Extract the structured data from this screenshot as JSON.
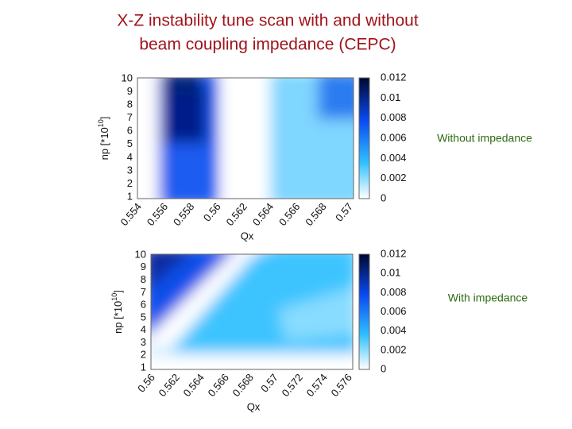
{
  "header": {
    "title_lines": [
      "X-Z instability tune scan with and without",
      "beam coupling impedance (CEPC)"
    ]
  },
  "panels": [
    {
      "caption": "Without impedance",
      "ylabel": {
        "base": "np [*10",
        "sup": "10",
        "end": "]"
      },
      "xlabel": "Qx",
      "yticks": [
        "1",
        "2",
        "3",
        "4",
        "5",
        "6",
        "7",
        "8",
        "9",
        "10"
      ],
      "xticks": [
        "0.554",
        "0.556",
        "0.558",
        "0.56",
        "0.562",
        "0.564",
        "0.566",
        "0.568",
        "0.57"
      ],
      "cbticks": [
        "0",
        "0.002",
        "0.004",
        "0.006",
        "0.008",
        "0.01",
        "0.012"
      ]
    },
    {
      "caption": "With impedance",
      "ylabel": {
        "base": "np [*10",
        "sup": "10",
        "end": "]"
      },
      "xlabel": "Qx",
      "yticks": [
        "1",
        "2",
        "3",
        "4",
        "5",
        "6",
        "7",
        "8",
        "9",
        "10"
      ],
      "xticks": [
        "0.56",
        "0.562",
        "0.564",
        "0.566",
        "0.568",
        "0.57",
        "0.572",
        "0.574",
        "0.576"
      ],
      "cbticks": [
        "0",
        "0.002",
        "0.004",
        "0.006",
        "0.008",
        "0.01",
        "0.012"
      ]
    }
  ]
}
